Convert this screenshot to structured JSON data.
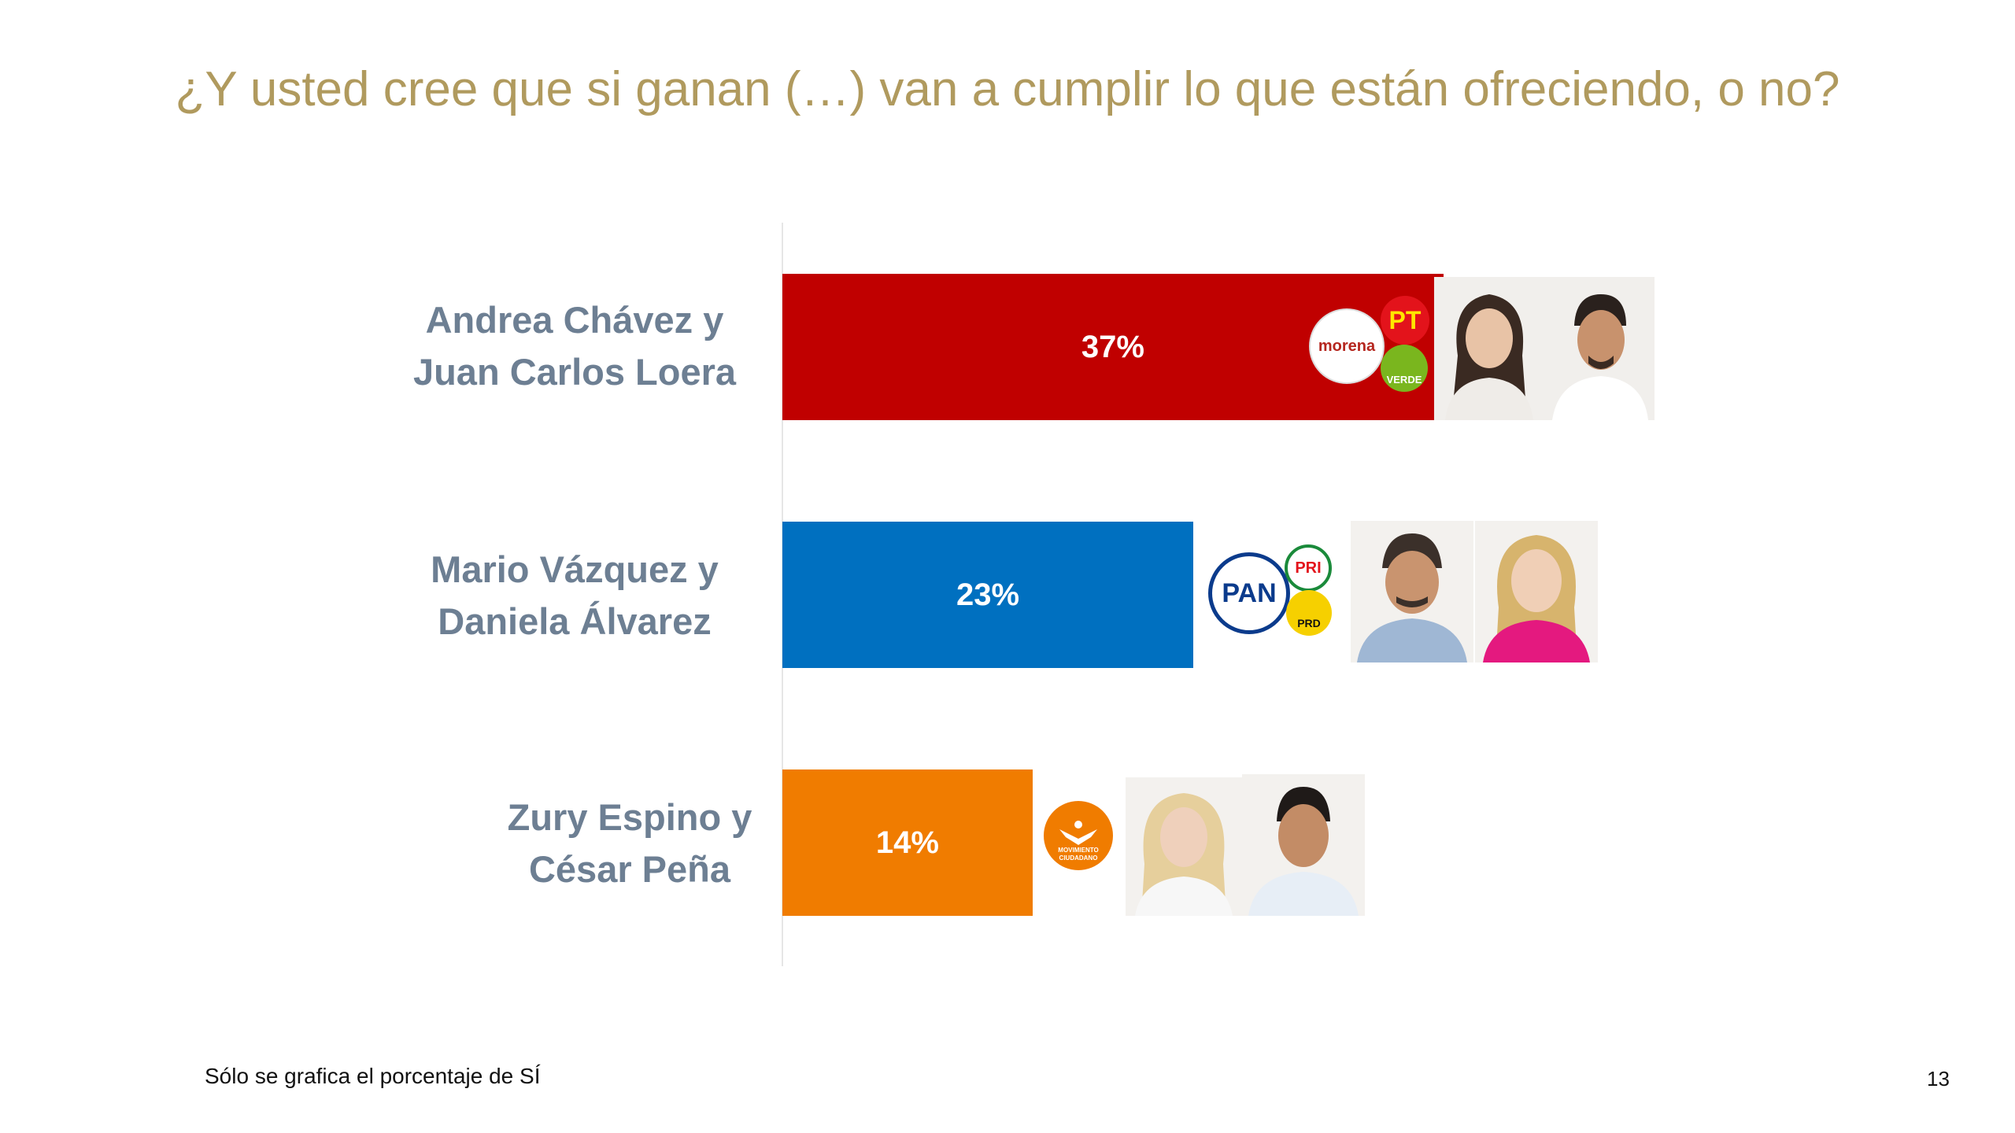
{
  "slide": {
    "title": "¿Y usted cree que si ganan (…) van a cumplir lo que están ofreciendo, o no?",
    "footnote": "Sólo se grafica el porcentaje de SÍ",
    "page_number": "13"
  },
  "chart_data": {
    "type": "bar",
    "orientation": "horizontal",
    "categories": [
      "Andrea Chávez y Juan Carlos Loera",
      "Mario Vázquez y Daniela Álvarez",
      "Zury Espino y César Peña"
    ],
    "category_lines": [
      [
        "Andrea Chávez y",
        "Juan Carlos Loera"
      ],
      [
        "Mario Vázquez y",
        "Daniela Álvarez"
      ],
      [
        "Zury Espino y",
        "César Peña"
      ]
    ],
    "values": [
      37,
      23,
      14
    ],
    "value_labels": [
      "37%",
      "23%",
      "14%"
    ],
    "bar_colors": [
      "#c00000",
      "#0070c0",
      "#f07c00"
    ],
    "xlim": [
      0,
      100
    ],
    "grid": false,
    "legend": "none"
  },
  "party_logos": [
    {
      "icon": "morena-logo",
      "text": "morena",
      "color": "#b5261e"
    },
    {
      "icon": "pt-logo",
      "text": "PT",
      "color": "#e3131b"
    },
    {
      "icon": "verde-logo",
      "text": "VERDE",
      "color": "#7ab61e"
    },
    {
      "icon": "pan-logo",
      "text": "PAN",
      "color": "#0b3b8c"
    },
    {
      "icon": "pri-logo",
      "text": "PRI",
      "color": "#e3131b"
    },
    {
      "icon": "prd-logo",
      "text": "PRD",
      "color": "#f6d000"
    },
    {
      "icon": "movimiento-ciudadano-logo",
      "text": "MOVIMIENTO CIUDADANO",
      "color": "#f07c00"
    }
  ],
  "candidate_photos": [
    "andrea-chavez-photo",
    "juan-carlos-loera-photo",
    "mario-vazquez-photo",
    "daniela-alvarez-photo",
    "zury-espino-photo",
    "cesar-pena-photo"
  ]
}
